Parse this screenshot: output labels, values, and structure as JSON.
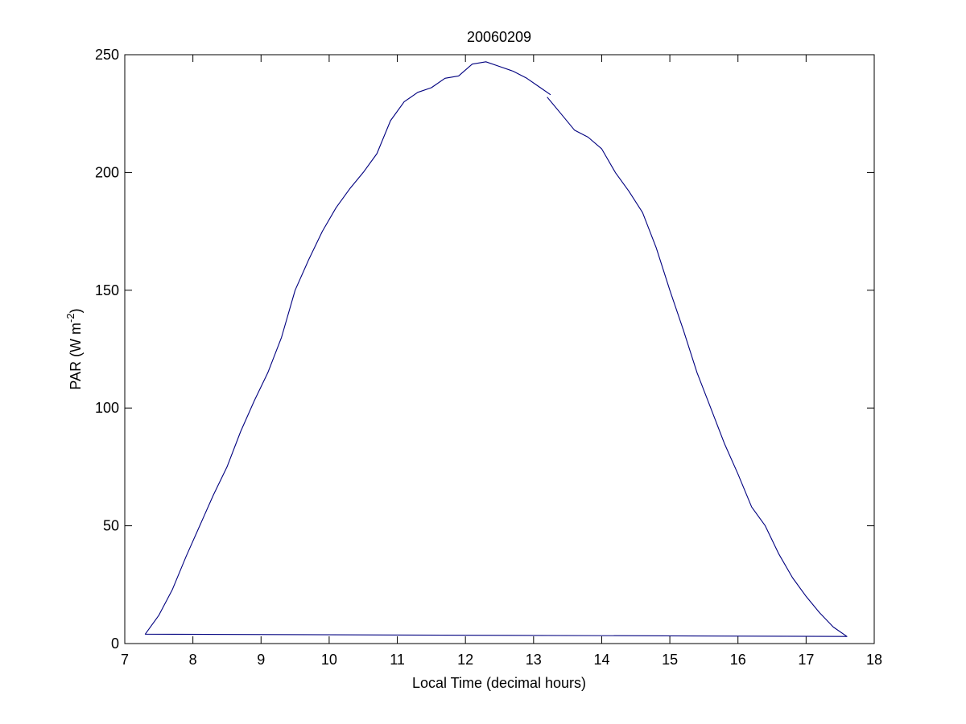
{
  "chart_data": {
    "type": "line",
    "title": "20060209",
    "xlabel": "Local Time (decimal hours)",
    "ylabel": {
      "text": "PAR (W m",
      "superscript": "-2",
      "suffix": ")"
    },
    "xlim": [
      7,
      18
    ],
    "ylim": [
      0,
      250
    ],
    "xticks": [
      "7",
      "8",
      "9",
      "10",
      "11",
      "12",
      "13",
      "14",
      "15",
      "16",
      "17",
      "18"
    ],
    "yticks": [
      "0",
      "50",
      "100",
      "150",
      "200",
      "250"
    ],
    "grid": false,
    "line_color": "#00007f",
    "series": [
      {
        "x": [
          13.2,
          13.4,
          13.6,
          13.8,
          14.0,
          14.2,
          14.4,
          14.6,
          14.8,
          15.0,
          15.2,
          15.4,
          15.6,
          15.8,
          16.0,
          16.2,
          16.4,
          16.6,
          16.8,
          17.0,
          17.2,
          17.4,
          17.6,
          7.3,
          7.5,
          7.7,
          7.9,
          8.1,
          8.3,
          8.5,
          8.7,
          8.9,
          9.1,
          9.3,
          9.5,
          9.7,
          9.9,
          10.1,
          10.3,
          10.5,
          10.7,
          10.9,
          11.1,
          11.3,
          11.5,
          11.7,
          11.9,
          12.1,
          12.3,
          12.5,
          12.7,
          12.9,
          13.1,
          13.25
        ],
        "y": [
          232,
          225,
          218,
          215,
          210,
          200,
          192,
          183,
          168,
          150,
          133,
          115,
          100,
          85,
          72,
          58,
          50,
          38,
          28,
          20,
          13,
          7,
          3,
          4,
          12,
          23,
          37,
          50,
          63,
          75,
          90,
          103,
          115,
          130,
          150,
          163,
          175,
          185,
          193,
          200,
          208,
          222,
          230,
          234,
          236,
          240,
          241,
          246,
          247,
          245,
          243,
          240,
          236,
          233
        ]
      }
    ]
  }
}
